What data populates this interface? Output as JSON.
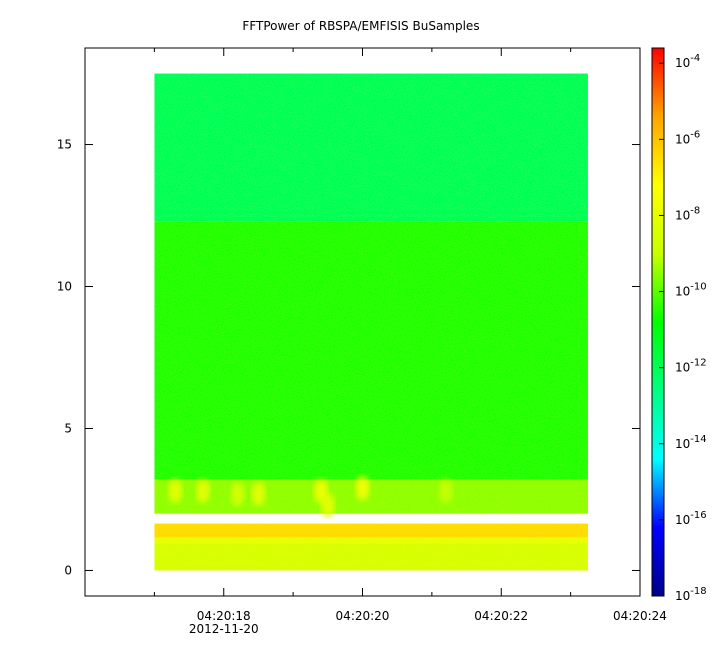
{
  "chart_data": {
    "type": "heatmap",
    "title": "FFTPower of RBSPA/EMFISIS  BuSamples",
    "xlabel": "",
    "ylabel": "",
    "x_ticks": [
      {
        "label": "04:20:18",
        "sublabel": "2012-11-20",
        "value": 18
      },
      {
        "label": "04:20:20",
        "sublabel": "",
        "value": 20
      },
      {
        "label": "04:20:22",
        "sublabel": "",
        "value": 22
      },
      {
        "label": "04:20:24",
        "sublabel": "",
        "value": 24
      }
    ],
    "x_minor_ticks": [
      17,
      19,
      21,
      23
    ],
    "xlim": [
      16.0,
      24.0
    ],
    "y_ticks": [
      {
        "label": "0",
        "value": 0
      },
      {
        "label": "5",
        "value": 5
      },
      {
        "label": "10",
        "value": 10
      },
      {
        "label": "15",
        "value": 15
      }
    ],
    "ylim": [
      -0.9,
      18.4
    ],
    "data_extent": {
      "x": [
        17.0,
        23.25
      ],
      "y": [
        0.0,
        17.5
      ]
    },
    "colorbar": {
      "scale": "log",
      "range_exponents": [
        -18,
        -3.6
      ],
      "colormap": [
        "#00008b",
        "#0000ff",
        "#00ffff",
        "#00ff80",
        "#00ff00",
        "#c8ff00",
        "#ffff00",
        "#ffa500",
        "#ff0000"
      ],
      "ticks": [
        {
          "base": "10",
          "exp": "-4",
          "value": -4
        },
        {
          "base": "10",
          "exp": "-6",
          "value": -6
        },
        {
          "base": "10",
          "exp": "-8",
          "value": -8
        },
        {
          "base": "10",
          "exp": "-10",
          "value": -10
        },
        {
          "base": "10",
          "exp": "-12",
          "value": -12
        },
        {
          "base": "10",
          "exp": "-14",
          "value": -14
        },
        {
          "base": "10",
          "exp": "-16",
          "value": -16
        },
        {
          "base": "10",
          "exp": "-18",
          "value": -18
        }
      ]
    },
    "bands": [
      {
        "y": [
          12.3,
          17.5
        ],
        "log_power": -12
      },
      {
        "y": [
          3.2,
          12.3
        ],
        "log_power": -10.5
      },
      {
        "y": [
          2.0,
          3.2
        ],
        "log_power": -9.5
      },
      {
        "y": [
          1.15,
          1.65
        ],
        "log_power": -6.5
      },
      {
        "y": [
          0.95,
          1.15
        ],
        "log_power": -8
      },
      {
        "y": [
          0.0,
          0.95
        ],
        "log_power": -8.5
      }
    ],
    "bursts": [
      {
        "x": 17.3,
        "y": 2.8,
        "log_power": -8
      },
      {
        "x": 17.7,
        "y": 2.8,
        "log_power": -8
      },
      {
        "x": 18.2,
        "y": 2.7,
        "log_power": -8.5
      },
      {
        "x": 18.5,
        "y": 2.7,
        "log_power": -8
      },
      {
        "x": 19.4,
        "y": 2.8,
        "log_power": -7.5
      },
      {
        "x": 19.5,
        "y": 2.3,
        "log_power": -8
      },
      {
        "x": 20.0,
        "y": 2.9,
        "log_power": -7.5
      },
      {
        "x": 21.2,
        "y": 2.8,
        "log_power": -9
      }
    ]
  }
}
